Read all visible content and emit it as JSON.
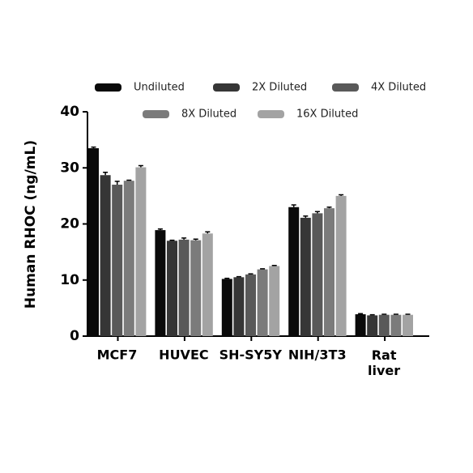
{
  "chart_data": {
    "type": "bar",
    "y_label": "Human RHOC (ng/mL)",
    "categories": [
      "MCF7",
      "HUVEC",
      "SH-SY5Y",
      "NIH/3T3",
      "Rat liver"
    ],
    "series": [
      {
        "name": "Undiluted",
        "color": "#0a0a0a",
        "values": [
          33.5,
          18.9,
          10.2,
          23.0,
          3.9
        ],
        "errors": [
          0.2,
          0.2,
          0.1,
          0.4,
          0.1
        ]
      },
      {
        "name": "2X Diluted",
        "color": "#363636",
        "values": [
          28.7,
          17.0,
          10.5,
          21.1,
          3.7
        ],
        "errors": [
          0.5,
          0.1,
          0.1,
          0.3,
          0.1
        ]
      },
      {
        "name": "4X Diluted",
        "color": "#595959",
        "values": [
          27.0,
          17.2,
          11.0,
          21.9,
          3.8
        ],
        "errors": [
          0.6,
          0.3,
          0.1,
          0.3,
          0.1
        ]
      },
      {
        "name": "8X Diluted",
        "color": "#7b7b7b",
        "values": [
          27.7,
          17.1,
          11.9,
          22.8,
          3.8
        ],
        "errors": [
          0.1,
          0.2,
          0.1,
          0.2,
          0.1
        ]
      },
      {
        "name": "16X Diluted",
        "color": "#a3a3a3",
        "values": [
          30.1,
          18.3,
          12.5,
          25.0,
          3.8
        ],
        "errors": [
          0.3,
          0.3,
          0.1,
          0.2,
          0.1
        ]
      }
    ],
    "ylim": [
      0,
      40
    ],
    "yticks": [
      0,
      10,
      20,
      30,
      40
    ],
    "grid": false
  }
}
